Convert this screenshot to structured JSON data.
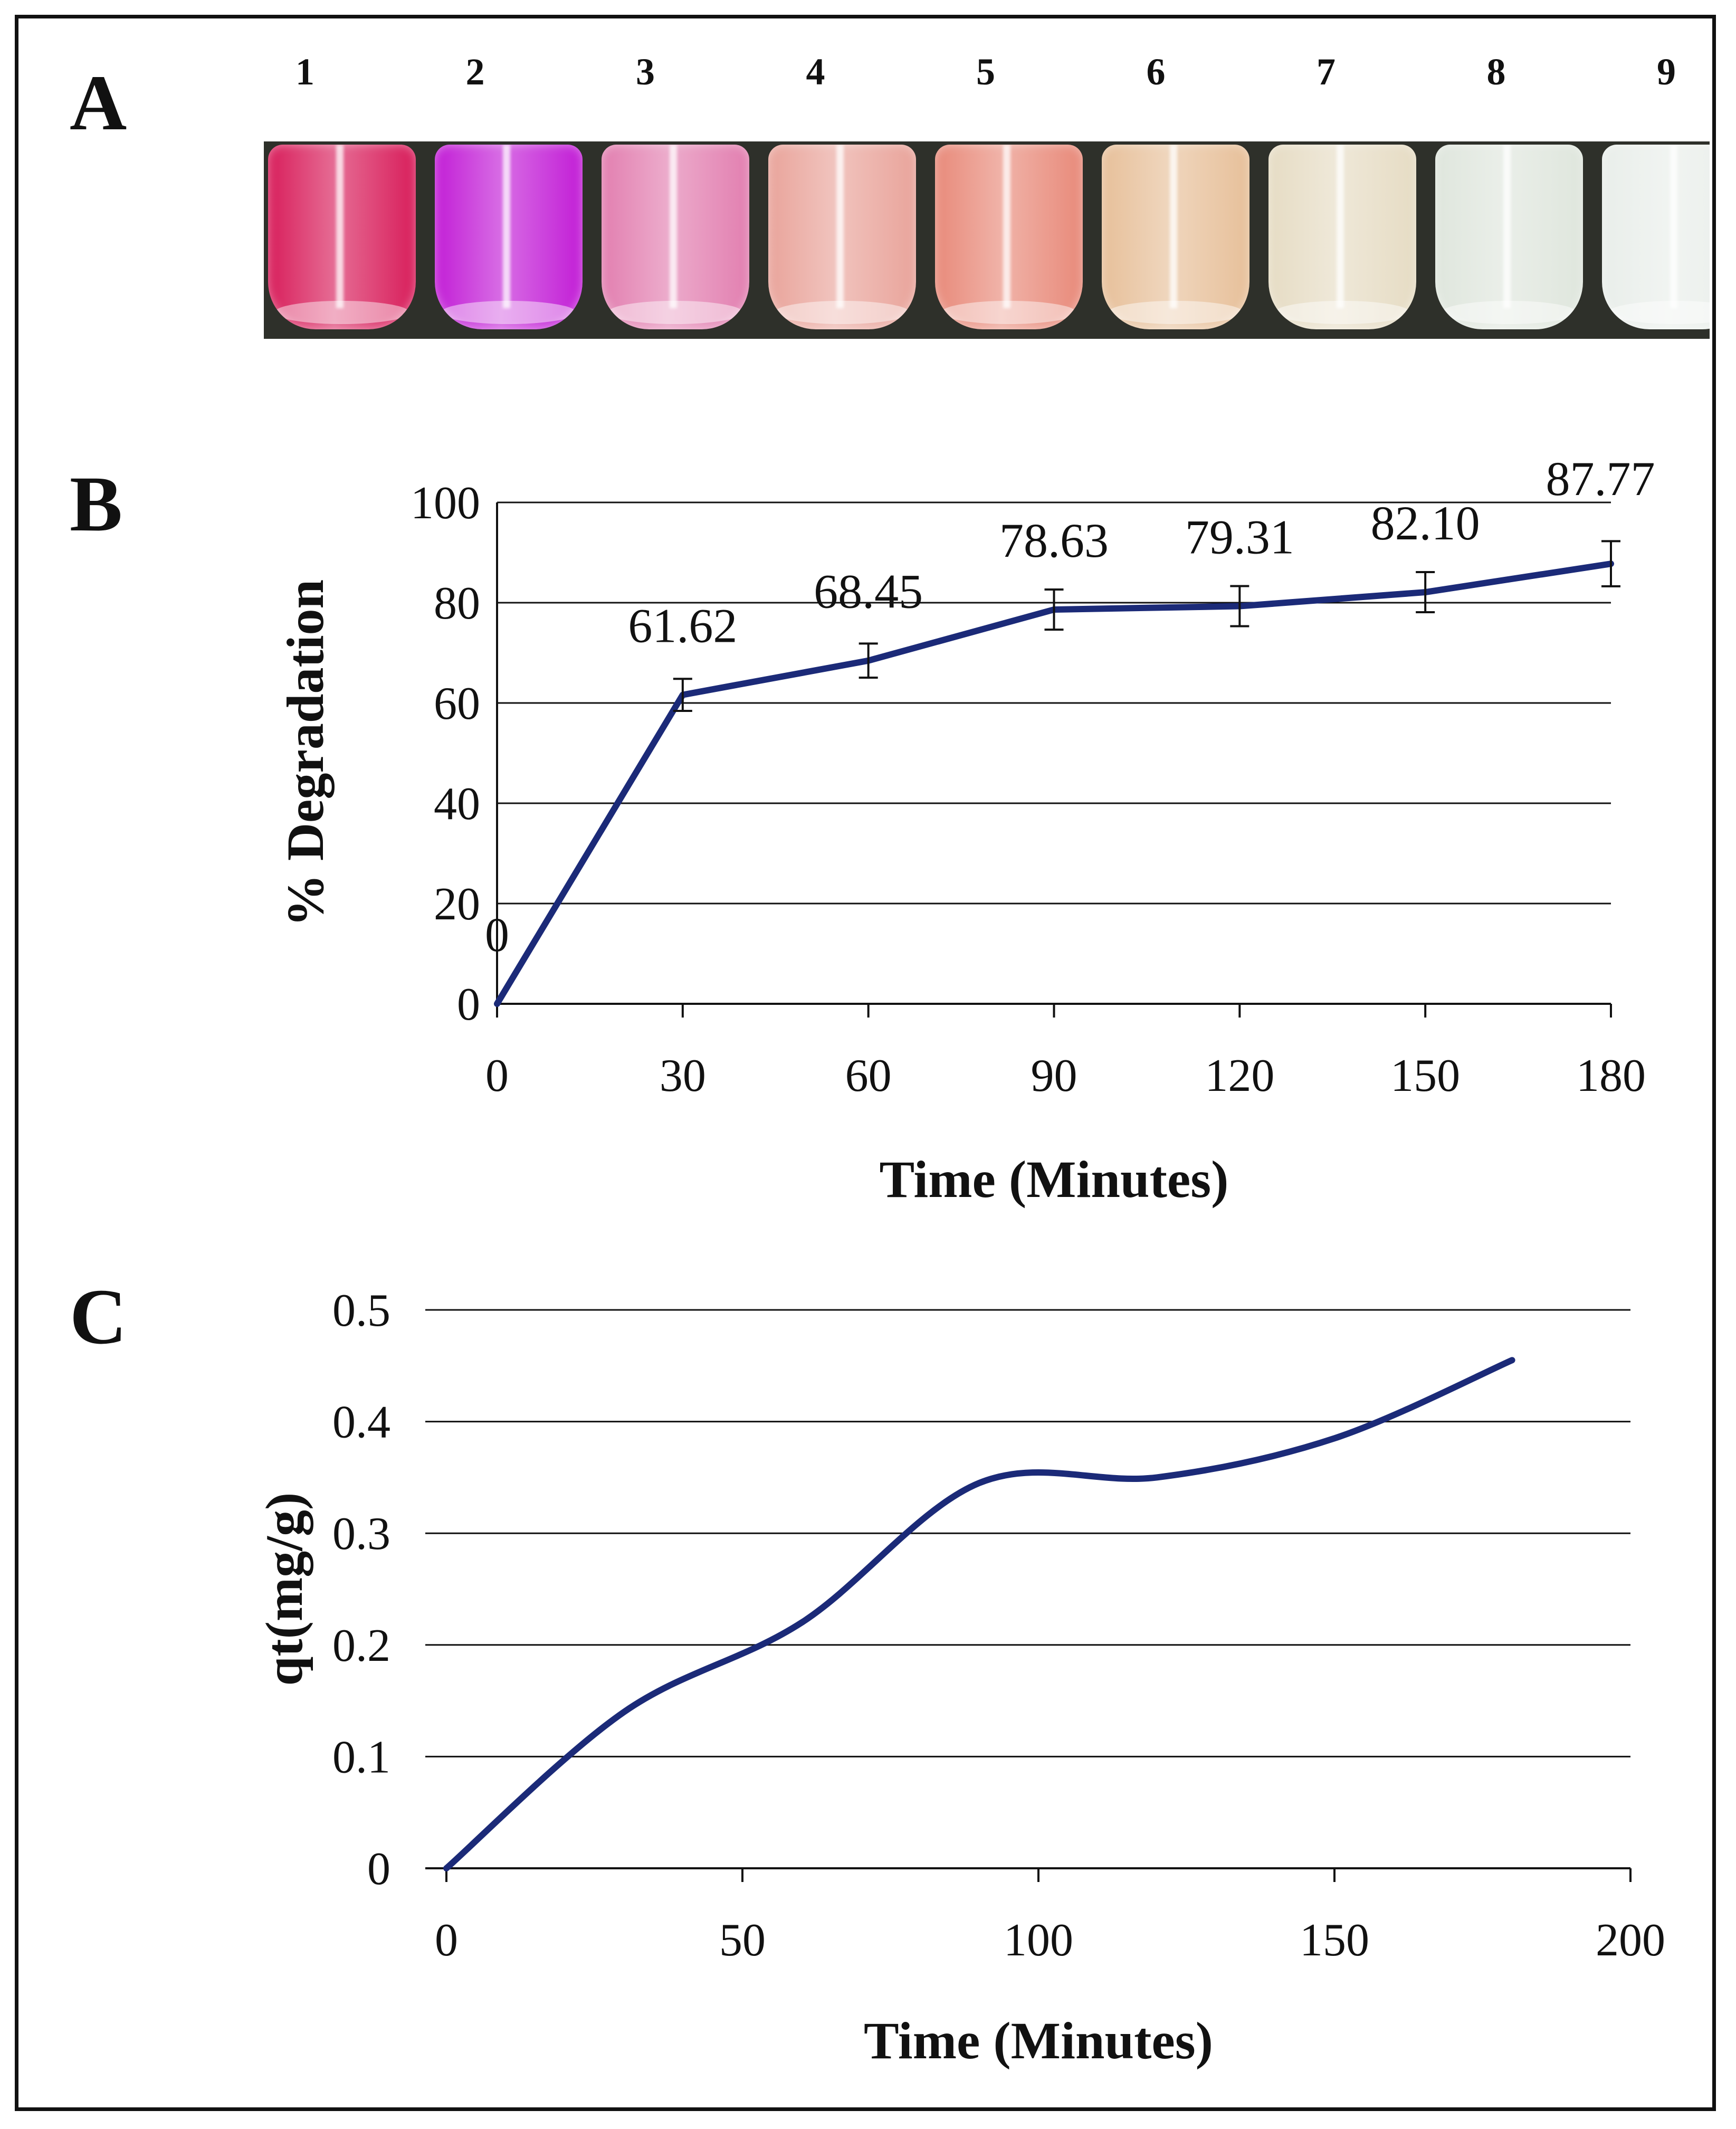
{
  "panel_a": {
    "label": "A",
    "tubes": [
      {
        "number": "1",
        "color": "#d81e5b"
      },
      {
        "number": "2",
        "color": "#c21ed6"
      },
      {
        "number": "3",
        "color": "#e27fb0"
      },
      {
        "number": "4",
        "color": "#e9a49b"
      },
      {
        "number": "5",
        "color": "#e88a7a"
      },
      {
        "number": "6",
        "color": "#e7c09a"
      },
      {
        "number": "7",
        "color": "#e6dcc4"
      },
      {
        "number": "8",
        "color": "#dfe6dd"
      },
      {
        "number": "9",
        "color": "#e9eeea"
      }
    ]
  },
  "colors": {
    "line": "#1b2a78",
    "grid": "#111111",
    "text": "#111111"
  },
  "chart_data": [
    {
      "panel": "B",
      "type": "line",
      "title": "",
      "xlabel": "Time (Minutes)",
      "ylabel": "% Degradation",
      "x": [
        0,
        30,
        60,
        90,
        120,
        150,
        180
      ],
      "series": [
        {
          "name": "% Degradation",
          "values": [
            0,
            61.62,
            68.45,
            78.63,
            79.31,
            82.1,
            87.77
          ],
          "error": [
            0,
            3.2,
            3.4,
            4.0,
            4.0,
            4.0,
            4.5
          ]
        }
      ],
      "data_labels": [
        "0",
        "61.62",
        "68.45",
        "78.63",
        "79.31",
        "82.10",
        "87.77"
      ],
      "x_ticks": [
        "0",
        "30",
        "60",
        "90",
        "120",
        "150",
        "180"
      ],
      "y_ticks": [
        "0",
        "20",
        "40",
        "60",
        "80",
        "100"
      ],
      "xlim": [
        0,
        180
      ],
      "ylim": [
        0,
        100
      ],
      "grid": true
    },
    {
      "panel": "C",
      "type": "line",
      "title": "",
      "xlabel": "Time (Minutes)",
      "ylabel": "qt(mg/g)",
      "x": [
        0,
        30,
        60,
        90,
        120,
        150,
        180
      ],
      "series": [
        {
          "name": "qt",
          "values": [
            0,
            0.14,
            0.22,
            0.345,
            0.35,
            0.385,
            0.455
          ]
        }
      ],
      "x_ticks": [
        "0",
        "50",
        "100",
        "150",
        "200"
      ],
      "y_ticks": [
        "0",
        "0.1",
        "0.2",
        "0.3",
        "0.4",
        "0.5"
      ],
      "xlim": [
        0,
        200
      ],
      "ylim": [
        0,
        0.5
      ],
      "grid": true,
      "smooth": true
    }
  ]
}
